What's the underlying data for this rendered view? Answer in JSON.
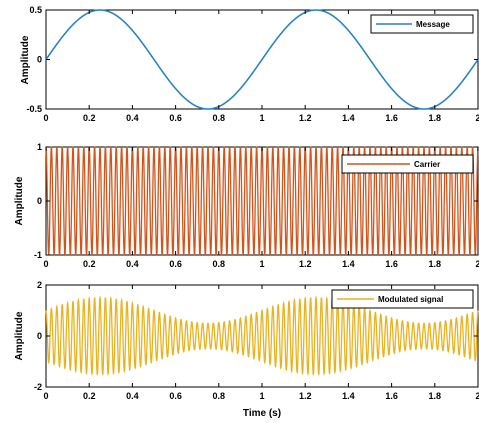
{
  "chart_data": [
    {
      "type": "line",
      "ylabel": "Amplitude",
      "xlabel": "",
      "xlim": [
        0,
        2
      ],
      "ylim": [
        -0.5,
        0.5
      ],
      "xticks": [
        "0",
        "0.2",
        "0.4",
        "0.6",
        "0.8",
        "1",
        "1.2",
        "1.4",
        "1.6",
        "1.8",
        "2"
      ],
      "yticks": [
        "0.5",
        "0",
        "-0.5"
      ],
      "legend": "top-right",
      "series": [
        {
          "name": "Message",
          "color": "#2a83c4",
          "formula": "0.5*sin(2*pi*1*t)",
          "frequency_hz": 1,
          "amplitude": 0.5
        }
      ]
    },
    {
      "type": "line",
      "ylabel": "Amplitude",
      "xlabel": "",
      "xlim": [
        0,
        2
      ],
      "ylim": [
        -1,
        1
      ],
      "xticks": [
        "0",
        "0.2",
        "0.4",
        "0.6",
        "0.8",
        "1",
        "1.2",
        "1.4",
        "1.6",
        "1.8",
        "2"
      ],
      "yticks": [
        "1",
        "0",
        "-1"
      ],
      "legend": "top-right",
      "series": [
        {
          "name": "Carrier",
          "color": "#d2541a",
          "formula": "cos(2*pi*40*t)",
          "frequency_hz": 40,
          "amplitude": 1
        }
      ]
    },
    {
      "type": "line",
      "ylabel": "Amplitude",
      "xlabel": "Time (s)",
      "xlim": [
        0,
        2
      ],
      "ylim": [
        -2,
        2
      ],
      "xticks": [
        "0",
        "0.2",
        "0.4",
        "0.6",
        "0.8",
        "1",
        "1.2",
        "1.4",
        "1.6",
        "1.8",
        "2"
      ],
      "yticks": [
        "2",
        "0",
        "-2"
      ],
      "legend": "top-right",
      "series": [
        {
          "name": "Modulated signal",
          "color": "#eab21e",
          "formula": "(1+0.5*sin(2*pi*1*t))*cos(2*pi*40*t)",
          "carrier_hz": 40,
          "message_hz": 1,
          "modulation_index": 0.5
        }
      ]
    }
  ]
}
